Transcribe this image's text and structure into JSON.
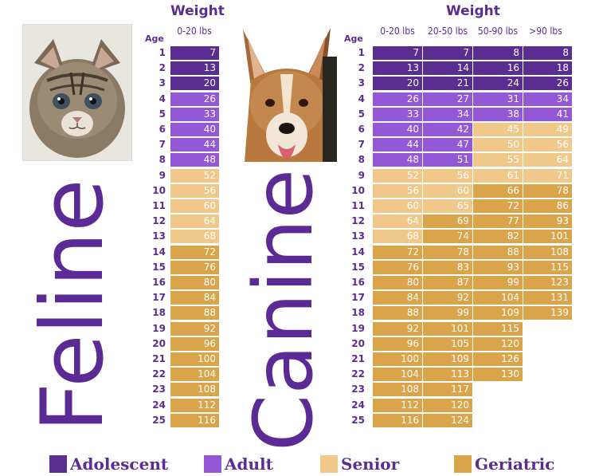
{
  "colors": {
    "adolescent": "#5a2d91",
    "adult": "#9457d6",
    "senior": "#f0c88a",
    "geriatric": "#d9a44a",
    "text": "#5a2d91"
  },
  "chart_data": [
    {
      "type": "table",
      "title": "Feline",
      "header": "Weight",
      "age_header": "Age",
      "columns": [
        "0-20 lbs"
      ],
      "ages": [
        1,
        2,
        3,
        4,
        5,
        6,
        7,
        8,
        9,
        10,
        11,
        12,
        13,
        14,
        15,
        16,
        17,
        18,
        19,
        20,
        21,
        22,
        23,
        24,
        25
      ],
      "values": [
        [
          7,
          13,
          20,
          26,
          33,
          40,
          44,
          48,
          52,
          56,
          60,
          64,
          68,
          72,
          76,
          80,
          84,
          88,
          92,
          96,
          100,
          104,
          108,
          112,
          116
        ]
      ],
      "categories": [
        [
          "adolescent",
          "adolescent",
          "adolescent",
          "adult",
          "adult",
          "adult",
          "adult",
          "adult",
          "senior",
          "senior",
          "senior",
          "senior",
          "senior",
          "geriatric",
          "geriatric",
          "geriatric",
          "geriatric",
          "geriatric",
          "geriatric",
          "geriatric",
          "geriatric",
          "geriatric",
          "geriatric",
          "geriatric",
          "geriatric"
        ]
      ]
    },
    {
      "type": "table",
      "title": "Canine",
      "header": "Weight",
      "age_header": "Age",
      "columns": [
        "0-20 lbs",
        "20-50 lbs",
        "50-90 lbs",
        ">90 lbs"
      ],
      "ages": [
        1,
        2,
        3,
        4,
        5,
        6,
        7,
        8,
        9,
        10,
        11,
        12,
        13,
        14,
        15,
        16,
        17,
        18,
        19,
        20,
        21,
        22,
        23,
        24,
        25
      ],
      "values": [
        [
          7,
          13,
          20,
          26,
          33,
          40,
          44,
          48,
          52,
          56,
          60,
          64,
          68,
          72,
          76,
          80,
          84,
          88,
          92,
          96,
          100,
          104,
          108,
          112,
          116
        ],
        [
          7,
          14,
          21,
          27,
          34,
          42,
          47,
          51,
          56,
          60,
          65,
          69,
          74,
          78,
          83,
          87,
          92,
          99,
          101,
          105,
          109,
          113,
          117,
          120,
          124
        ],
        [
          8,
          16,
          24,
          31,
          38,
          45,
          50,
          55,
          61,
          66,
          72,
          77,
          82,
          88,
          93,
          99,
          104,
          109,
          115,
          120,
          126,
          130,
          null,
          null,
          null
        ],
        [
          8,
          18,
          26,
          34,
          41,
          49,
          56,
          64,
          71,
          78,
          86,
          93,
          101,
          108,
          115,
          123,
          131,
          139,
          null,
          null,
          null,
          null,
          null,
          null,
          null
        ]
      ],
      "categories": [
        [
          "adolescent",
          "adolescent",
          "adolescent",
          "adult",
          "adult",
          "adult",
          "adult",
          "adult",
          "senior",
          "senior",
          "senior",
          "senior",
          "senior",
          "geriatric",
          "geriatric",
          "geriatric",
          "geriatric",
          "geriatric",
          "geriatric",
          "geriatric",
          "geriatric",
          "geriatric",
          "geriatric",
          "geriatric",
          "geriatric"
        ],
        [
          "adolescent",
          "adolescent",
          "adolescent",
          "adult",
          "adult",
          "adult",
          "adult",
          "adult",
          "senior",
          "senior",
          "senior",
          "geriatric",
          "geriatric",
          "geriatric",
          "geriatric",
          "geriatric",
          "geriatric",
          "geriatric",
          "geriatric",
          "geriatric",
          "geriatric",
          "geriatric",
          "geriatric",
          "geriatric",
          "geriatric"
        ],
        [
          "adolescent",
          "adolescent",
          "adolescent",
          "adult",
          "adult",
          "senior",
          "senior",
          "senior",
          "senior",
          "geriatric",
          "geriatric",
          "geriatric",
          "geriatric",
          "geriatric",
          "geriatric",
          "geriatric",
          "geriatric",
          "geriatric",
          "geriatric",
          "geriatric",
          "geriatric",
          "geriatric",
          null,
          null,
          null
        ],
        [
          "adolescent",
          "adolescent",
          "adolescent",
          "adult",
          "adult",
          "senior",
          "senior",
          "senior",
          "senior",
          "geriatric",
          "geriatric",
          "geriatric",
          "geriatric",
          "geriatric",
          "geriatric",
          "geriatric",
          "geriatric",
          "geriatric",
          null,
          null,
          null,
          null,
          null,
          null,
          null
        ]
      ]
    }
  ],
  "legend": [
    {
      "key": "adolescent",
      "label": "Adolescent"
    },
    {
      "key": "adult",
      "label": "Adult"
    },
    {
      "key": "senior",
      "label": "Senior"
    },
    {
      "key": "geriatric",
      "label": "Geriatric"
    }
  ],
  "images": {
    "kitten": "kitten photo",
    "dog": "dog photo"
  }
}
